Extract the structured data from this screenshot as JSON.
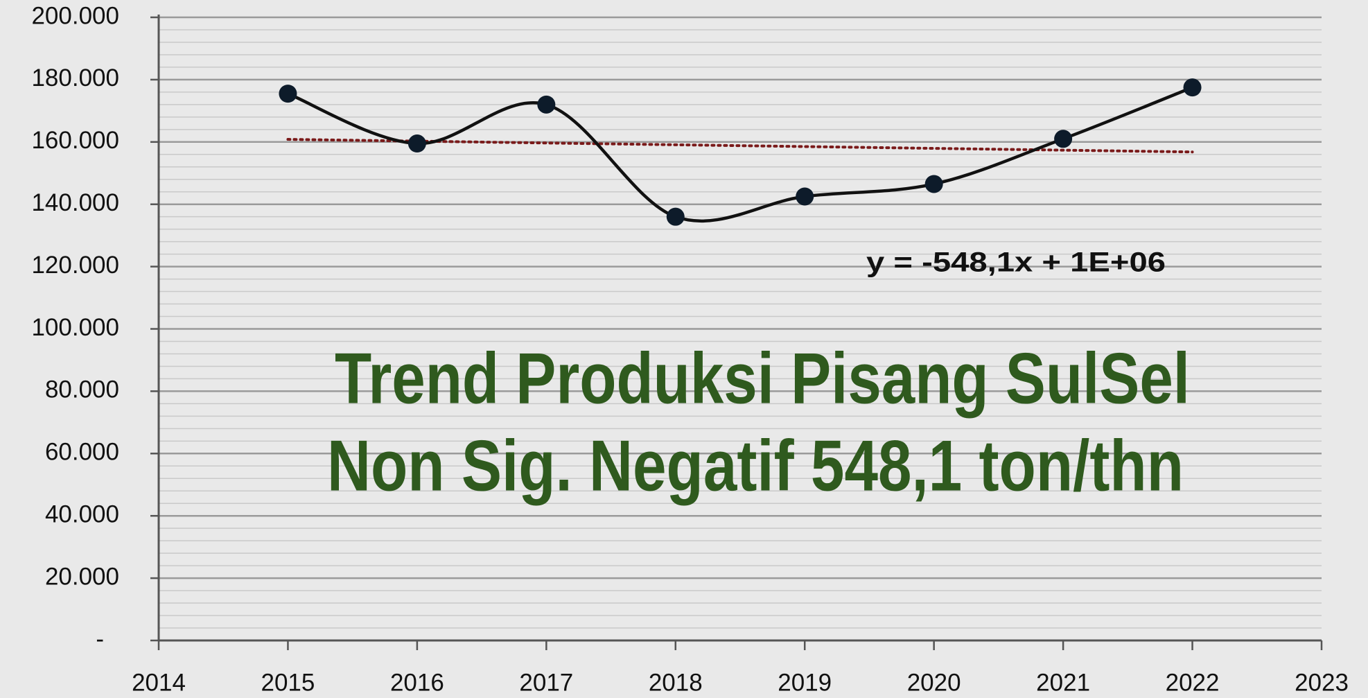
{
  "chart_data": {
    "type": "line",
    "annotations": [
      "y = -548,1x + 1E+06",
      "Trend Produksi Pisang SulSel",
      "Non Sig. Negatif 548,1 ton/thn"
    ],
    "x": [
      2015,
      2016,
      2017,
      2018,
      2019,
      2020,
      2021,
      2022
    ],
    "series": [
      {
        "color": "#0d1b2a",
        "values": [
          175500,
          159500,
          172000,
          136000,
          142500,
          146500,
          161000,
          177500
        ]
      }
    ],
    "trendline": {
      "type": "linear",
      "color": "#7a1a1a"
    },
    "xlim": [
      2014,
      2023
    ],
    "xticks": [
      2014,
      2015,
      2016,
      2017,
      2018,
      2019,
      2020,
      2021,
      2022,
      2023
    ],
    "ylim": [
      0,
      200000
    ],
    "yticks": [
      {
        "value": 0,
        "label": "-"
      },
      {
        "value": 20000,
        "label": "20.000"
      },
      {
        "value": 40000,
        "label": "40.000"
      },
      {
        "value": 60000,
        "label": "60.000"
      },
      {
        "value": 80000,
        "label": "80.000"
      },
      {
        "value": 100000,
        "label": "100.000"
      },
      {
        "value": 120000,
        "label": "120.000"
      },
      {
        "value": 140000,
        "label": "140.000"
      },
      {
        "value": 160000,
        "label": "160.000"
      },
      {
        "value": 180000,
        "label": "180.000"
      },
      {
        "value": 200000,
        "label": "200.000"
      }
    ],
    "grid": true
  }
}
